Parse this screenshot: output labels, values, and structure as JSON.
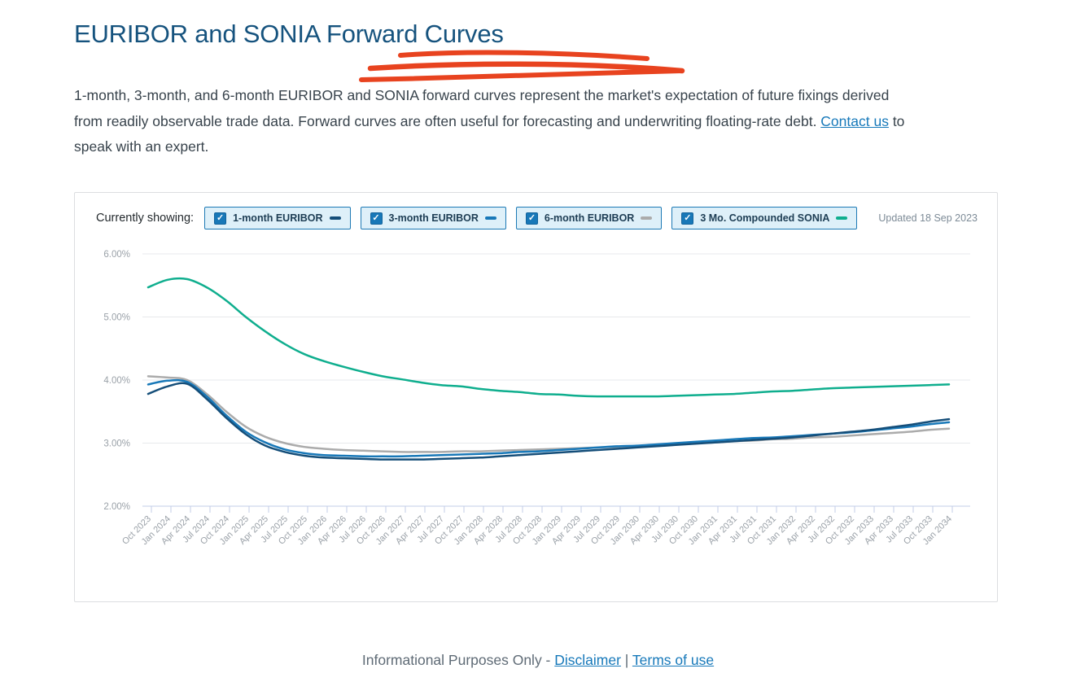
{
  "page_title": "EURIBOR and SONIA Forward Curves",
  "intro": {
    "before_link": "1-month, 3-month, and 6-month EURIBOR and SONIA forward curves represent the market's expectation of future fixings derived from readily observable trade data. Forward curves are often useful for forecasting and underwriting floating-rate debt. ",
    "link_label": "Contact us",
    "after_link": " to speak with an expert."
  },
  "panel": {
    "legend_label": "Currently showing:",
    "updated_text": "Updated 18 Sep 2023",
    "toggles": [
      {
        "label": "1-month EURIBOR",
        "checked": true,
        "color": "#154e79"
      },
      {
        "label": "3-month EURIBOR",
        "checked": true,
        "color": "#1878b8"
      },
      {
        "label": "6-month EURIBOR",
        "checked": true,
        "color": "#ababab"
      },
      {
        "label": "3 Mo. Compounded SONIA",
        "checked": true,
        "color": "#0fae8e"
      }
    ],
    "checkbox_glyph": "✓"
  },
  "colors": {
    "title_navy": "#16537e",
    "link_blue": "#1779ba",
    "scribble_red": "#e8431f",
    "gridline": "#e7e9ec",
    "axis_line": "#c3cde7",
    "toggle_bg": "#def0f9",
    "toggle_border": "#1d7ab5",
    "checkbox_blue": "#1878b8"
  },
  "chart_data": {
    "type": "line",
    "title": "",
    "xlabel": "",
    "ylabel": "",
    "ylim": [
      2,
      6
    ],
    "grid": true,
    "legend_position": "top",
    "ylabel_ticks": [
      "6.00%",
      "5.00%",
      "4.00%",
      "3.00%",
      "2.00%"
    ],
    "categories": [
      "Oct 2023",
      "Jan 2024",
      "Apr 2024",
      "Jul 2024",
      "Oct 2024",
      "Jan 2025",
      "Apr 2025",
      "Jul 2025",
      "Oct 2025",
      "Jan 2026",
      "Apr 2026",
      "Jul 2026",
      "Oct 2026",
      "Jan 2027",
      "Apr 2027",
      "Jul 2027",
      "Oct 2027",
      "Jan 2028",
      "Apr 2028",
      "Jul 2028",
      "Oct 2028",
      "Jan 2029",
      "Apr 2029",
      "Jul 2029",
      "Oct 2029",
      "Jan 2030",
      "Apr 2030",
      "Jul 2030",
      "Oct 2030",
      "Jan 2031",
      "Apr 2031",
      "Jul 2031",
      "Oct 2031",
      "Jan 2032",
      "Apr 2032",
      "Jul 2032",
      "Oct 2032",
      "Jan 2033",
      "Apr 2033",
      "Jul 2033",
      "Oct 2033",
      "Jan 2034"
    ],
    "series": [
      {
        "name": "1-month EURIBOR",
        "color": "#154e79",
        "values": [
          3.78,
          3.9,
          3.94,
          3.7,
          3.4,
          3.14,
          2.96,
          2.86,
          2.8,
          2.77,
          2.76,
          2.75,
          2.74,
          2.74,
          2.74,
          2.75,
          2.76,
          2.77,
          2.79,
          2.81,
          2.83,
          2.85,
          2.87,
          2.89,
          2.91,
          2.93,
          2.95,
          2.97,
          2.99,
          3.01,
          3.03,
          3.05,
          3.07,
          3.09,
          3.12,
          3.15,
          3.18,
          3.21,
          3.25,
          3.29,
          3.34,
          3.38
        ]
      },
      {
        "name": "3-month EURIBOR",
        "color": "#1878b8",
        "values": [
          3.93,
          3.99,
          3.97,
          3.74,
          3.44,
          3.18,
          3.01,
          2.9,
          2.84,
          2.81,
          2.8,
          2.79,
          2.79,
          2.79,
          2.8,
          2.81,
          2.82,
          2.83,
          2.84,
          2.86,
          2.87,
          2.89,
          2.91,
          2.93,
          2.95,
          2.96,
          2.98,
          3.0,
          3.02,
          3.04,
          3.06,
          3.08,
          3.09,
          3.11,
          3.13,
          3.15,
          3.17,
          3.2,
          3.23,
          3.26,
          3.3,
          3.33
        ]
      },
      {
        "name": "6-month EURIBOR",
        "color": "#ababab",
        "values": [
          4.06,
          4.04,
          4.0,
          3.78,
          3.5,
          3.26,
          3.1,
          3.0,
          2.94,
          2.91,
          2.89,
          2.88,
          2.87,
          2.86,
          2.86,
          2.86,
          2.87,
          2.87,
          2.88,
          2.89,
          2.9,
          2.91,
          2.92,
          2.93,
          2.94,
          2.95,
          2.97,
          2.98,
          3.0,
          3.01,
          3.03,
          3.04,
          3.06,
          3.07,
          3.09,
          3.1,
          3.12,
          3.14,
          3.16,
          3.18,
          3.21,
          3.23
        ]
      },
      {
        "name": "3 Mo. Compounded SONIA",
        "color": "#0fae8e",
        "values": [
          5.47,
          5.59,
          5.6,
          5.47,
          5.26,
          5.0,
          4.77,
          4.57,
          4.41,
          4.3,
          4.21,
          4.13,
          4.06,
          4.01,
          3.96,
          3.92,
          3.9,
          3.86,
          3.83,
          3.81,
          3.78,
          3.77,
          3.75,
          3.74,
          3.74,
          3.74,
          3.74,
          3.75,
          3.76,
          3.77,
          3.78,
          3.8,
          3.82,
          3.83,
          3.85,
          3.87,
          3.88,
          3.89,
          3.9,
          3.91,
          3.92,
          3.93
        ]
      }
    ]
  },
  "footer": {
    "prefix": "Informational Purposes Only - ",
    "disclaimer_label": "Disclaimer",
    "separator": " | ",
    "terms_label": "Terms of use"
  }
}
